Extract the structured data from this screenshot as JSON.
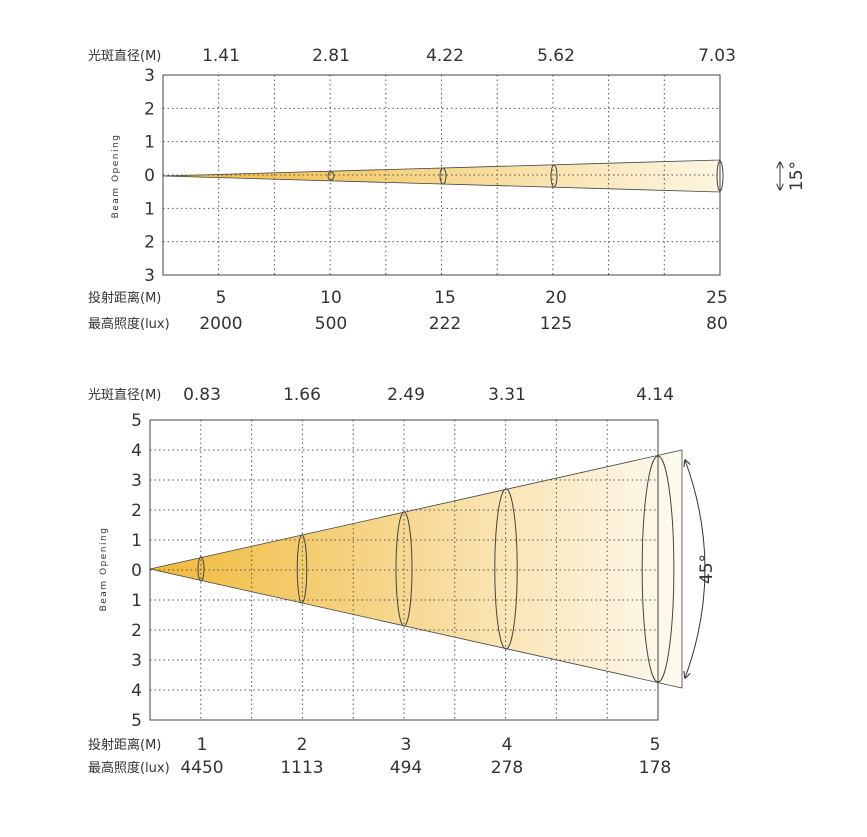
{
  "panels": [
    {
      "diameter_label": "光斑直径(M)",
      "diameters": [
        "1.41",
        "2.81",
        "4.22",
        "5.62",
        "7.03"
      ],
      "y_axis_label": "Beam Opening",
      "y_ticks": [
        "3",
        "2",
        "1",
        "0",
        "1",
        "2",
        "3"
      ],
      "distance_label": "投射距离(M)",
      "distances": [
        "5",
        "10",
        "15",
        "20",
        "25"
      ],
      "lux_label": "最高照度(lux)",
      "lux": [
        "2000",
        "500",
        "222",
        "125",
        "80"
      ],
      "angle": "15°"
    },
    {
      "diameter_label": "光斑直径(M)",
      "diameters": [
        "0.83",
        "1.66",
        "2.49",
        "3.31",
        "4.14"
      ],
      "y_axis_label": "Beam Opening",
      "y_ticks": [
        "5",
        "4",
        "3",
        "2",
        "1",
        "0",
        "1",
        "2",
        "3",
        "4",
        "5"
      ],
      "distance_label": "投射距离(M)",
      "distances": [
        "1",
        "2",
        "3",
        "4",
        "5"
      ],
      "lux_label": "最高照度(lux)",
      "lux": [
        "4450",
        "1113",
        "494",
        "278",
        "178"
      ],
      "angle": "45°"
    }
  ]
}
